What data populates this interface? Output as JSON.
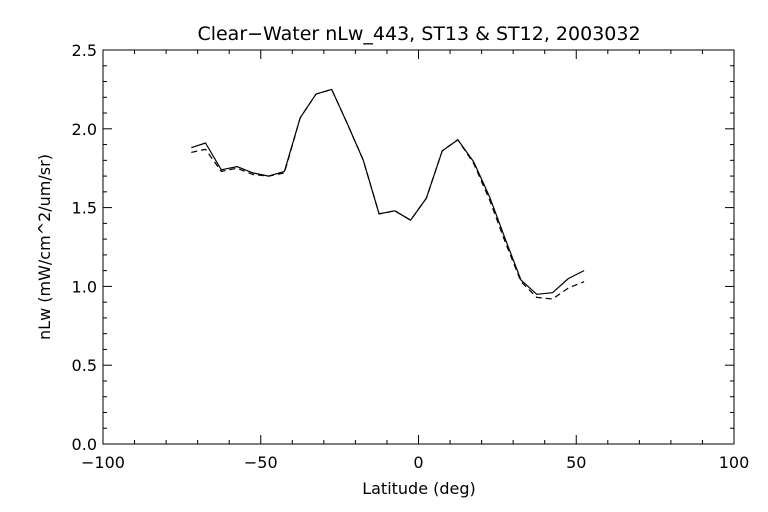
{
  "chart_data": {
    "type": "line",
    "title": "Clear−Water nLw_443, ST13 & ST12, 2003032",
    "xlabel": "Latitude (deg)",
    "ylabel": "nLw (mW/cm^2/um/sr)",
    "xlim": [
      -100,
      100
    ],
    "ylim": [
      0.0,
      2.5
    ],
    "x_ticks": [
      -100,
      -50,
      0,
      50,
      100
    ],
    "x_tick_labels": [
      "−100",
      "−50",
      "0",
      "50",
      "100"
    ],
    "y_ticks": [
      0.0,
      0.5,
      1.0,
      1.5,
      2.0,
      2.5
    ],
    "y_tick_labels": [
      "0.0",
      "0.5",
      "1.0",
      "1.5",
      "2.0",
      "2.5"
    ],
    "grid": false,
    "series": [
      {
        "style": "solid",
        "color": "#000000",
        "x": [
          -72,
          -67.5,
          -62.5,
          -57.5,
          -52.5,
          -47.5,
          -42.5,
          -37.5,
          -32.5,
          -27.5,
          -22.5,
          -17.5,
          -12.5,
          -7.5,
          -2.5,
          2.5,
          7.5,
          12.5,
          17.5,
          22.5,
          27.5,
          32.5,
          37.5,
          42.5,
          47.5,
          52.5
        ],
        "y": [
          1.88,
          1.91,
          1.74,
          1.76,
          1.72,
          1.7,
          1.73,
          2.07,
          2.22,
          2.25,
          2.03,
          1.8,
          1.46,
          1.48,
          1.42,
          1.56,
          1.86,
          1.93,
          1.79,
          1.57,
          1.3,
          1.04,
          0.95,
          0.96,
          1.05,
          1.1
        ]
      },
      {
        "style": "dashed",
        "color": "#000000",
        "x": [
          -72,
          -67.5,
          -62.5,
          -57.5,
          -52.5,
          -47.5,
          -42.5,
          -37.5,
          -32.5,
          -27.5,
          -22.5,
          -17.5,
          -12.5,
          -7.5,
          -2.5,
          2.5,
          7.5,
          12.5,
          17.5,
          22.5,
          27.5,
          32.5,
          37.5,
          42.5,
          47.5,
          52.5
        ],
        "y": [
          1.85,
          1.87,
          1.73,
          1.75,
          1.71,
          1.7,
          1.72,
          2.07,
          2.22,
          2.25,
          2.03,
          1.8,
          1.46,
          1.48,
          1.42,
          1.56,
          1.86,
          1.93,
          1.78,
          1.55,
          1.28,
          1.03,
          0.93,
          0.92,
          0.99,
          1.03
        ]
      }
    ]
  }
}
